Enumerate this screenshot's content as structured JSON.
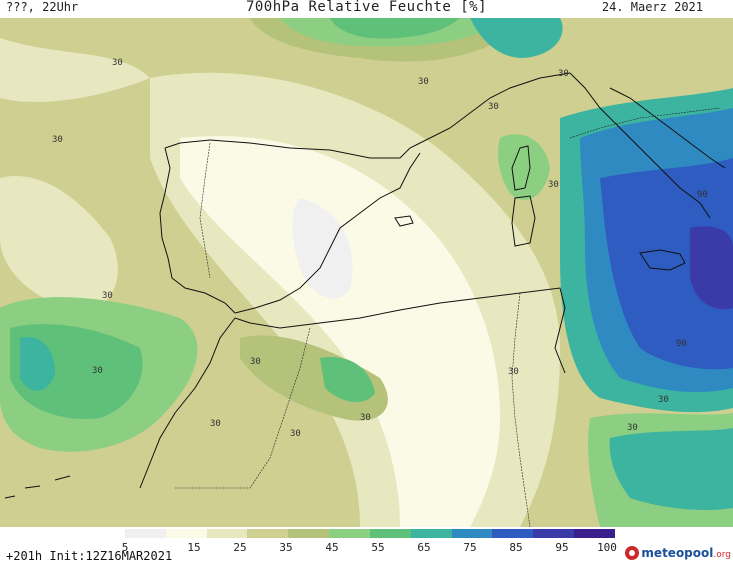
{
  "header": {
    "left": "???, 22Uhr",
    "title": "700hPa Relative Feuchte [%]",
    "date": "24. Maerz 2021"
  },
  "map": {
    "contour_labels": [
      "30",
      "30",
      "30",
      "30",
      "30",
      "30",
      "30",
      "30",
      "30",
      "30",
      "30",
      "30",
      "30",
      "30",
      "30",
      "90",
      "90"
    ]
  },
  "legend": {
    "ticks": [
      "5",
      "15",
      "25",
      "35",
      "45",
      "55",
      "65",
      "75",
      "85",
      "95",
      "100"
    ],
    "colors": [
      "#f0f0f0",
      "#fafae6",
      "#e8e8c0",
      "#cfcf92",
      "#b4c27a",
      "#8ccf82",
      "#5fc07a",
      "#3cb4a0",
      "#2f8ac2",
      "#2e5cc0",
      "#3a3aa8",
      "#3a1f8c"
    ]
  },
  "footer": {
    "run_info": "+201h Init:12Z16MAR2021",
    "logo_main": "meteopool",
    "logo_sub": ".org"
  }
}
